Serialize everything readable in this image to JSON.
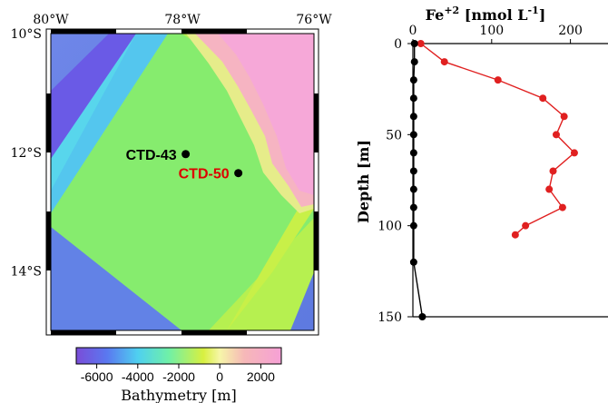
{
  "chart_data": [
    {
      "type": "heatmap",
      "panel": "map",
      "lon_ticks": [
        "80°W",
        "78°W",
        "76°W"
      ],
      "lat_ticks": [
        "10°S",
        "12°S",
        "14°S"
      ],
      "lon_range": [
        -80,
        -76
      ],
      "lat_range": [
        -15,
        -10
      ],
      "stations": [
        {
          "name": "CTD-43",
          "lon": -77.95,
          "lat": -12.03,
          "label_color": "#000000"
        },
        {
          "name": "CTD-50",
          "lon": -77.15,
          "lat": -12.35,
          "label_color": "#dd0000"
        }
      ],
      "colorbar": {
        "title": "Bathymetry [m]",
        "ticks": [
          -6000,
          -4000,
          -2000,
          0,
          2000
        ],
        "range": [
          -7000,
          3000
        ],
        "tick_labels": [
          "-6000",
          "-4000",
          "-2000",
          "0",
          "2000"
        ]
      }
    },
    {
      "type": "line",
      "panel": "profile",
      "title": "Fe+2 [nmol L-1]",
      "title_main": "Fe",
      "title_sup": "+2",
      "title_rest": " [nmol L",
      "title_sup2": "-1",
      "title_end": "]",
      "ylabel": "Depth [m]",
      "xlim": [
        0,
        250
      ],
      "ylim": [
        0,
        150
      ],
      "x_ticks": [
        0,
        100,
        200
      ],
      "y_ticks": [
        0,
        50,
        100,
        150
      ],
      "series": [
        {
          "color": "#e02020",
          "points": [
            [
              10,
              0
            ],
            [
              40,
              10
            ],
            [
              108,
              20
            ],
            [
              165,
              30
            ],
            [
              192,
              40
            ],
            [
              182,
              50
            ],
            [
              205,
              60
            ],
            [
              178,
              70
            ],
            [
              173,
              80
            ],
            [
              190,
              90
            ],
            [
              143,
              100
            ],
            [
              130,
              105
            ]
          ]
        },
        {
          "color": "#000000",
          "points": [
            [
              2,
              0
            ],
            [
              2,
              10
            ],
            [
              1,
              20
            ],
            [
              1,
              30
            ],
            [
              1,
              40
            ],
            [
              1,
              50
            ],
            [
              1,
              60
            ],
            [
              1,
              70
            ],
            [
              1,
              80
            ],
            [
              1,
              90
            ],
            [
              1,
              100
            ],
            [
              1,
              120
            ],
            [
              12,
              150
            ]
          ]
        }
      ]
    }
  ]
}
